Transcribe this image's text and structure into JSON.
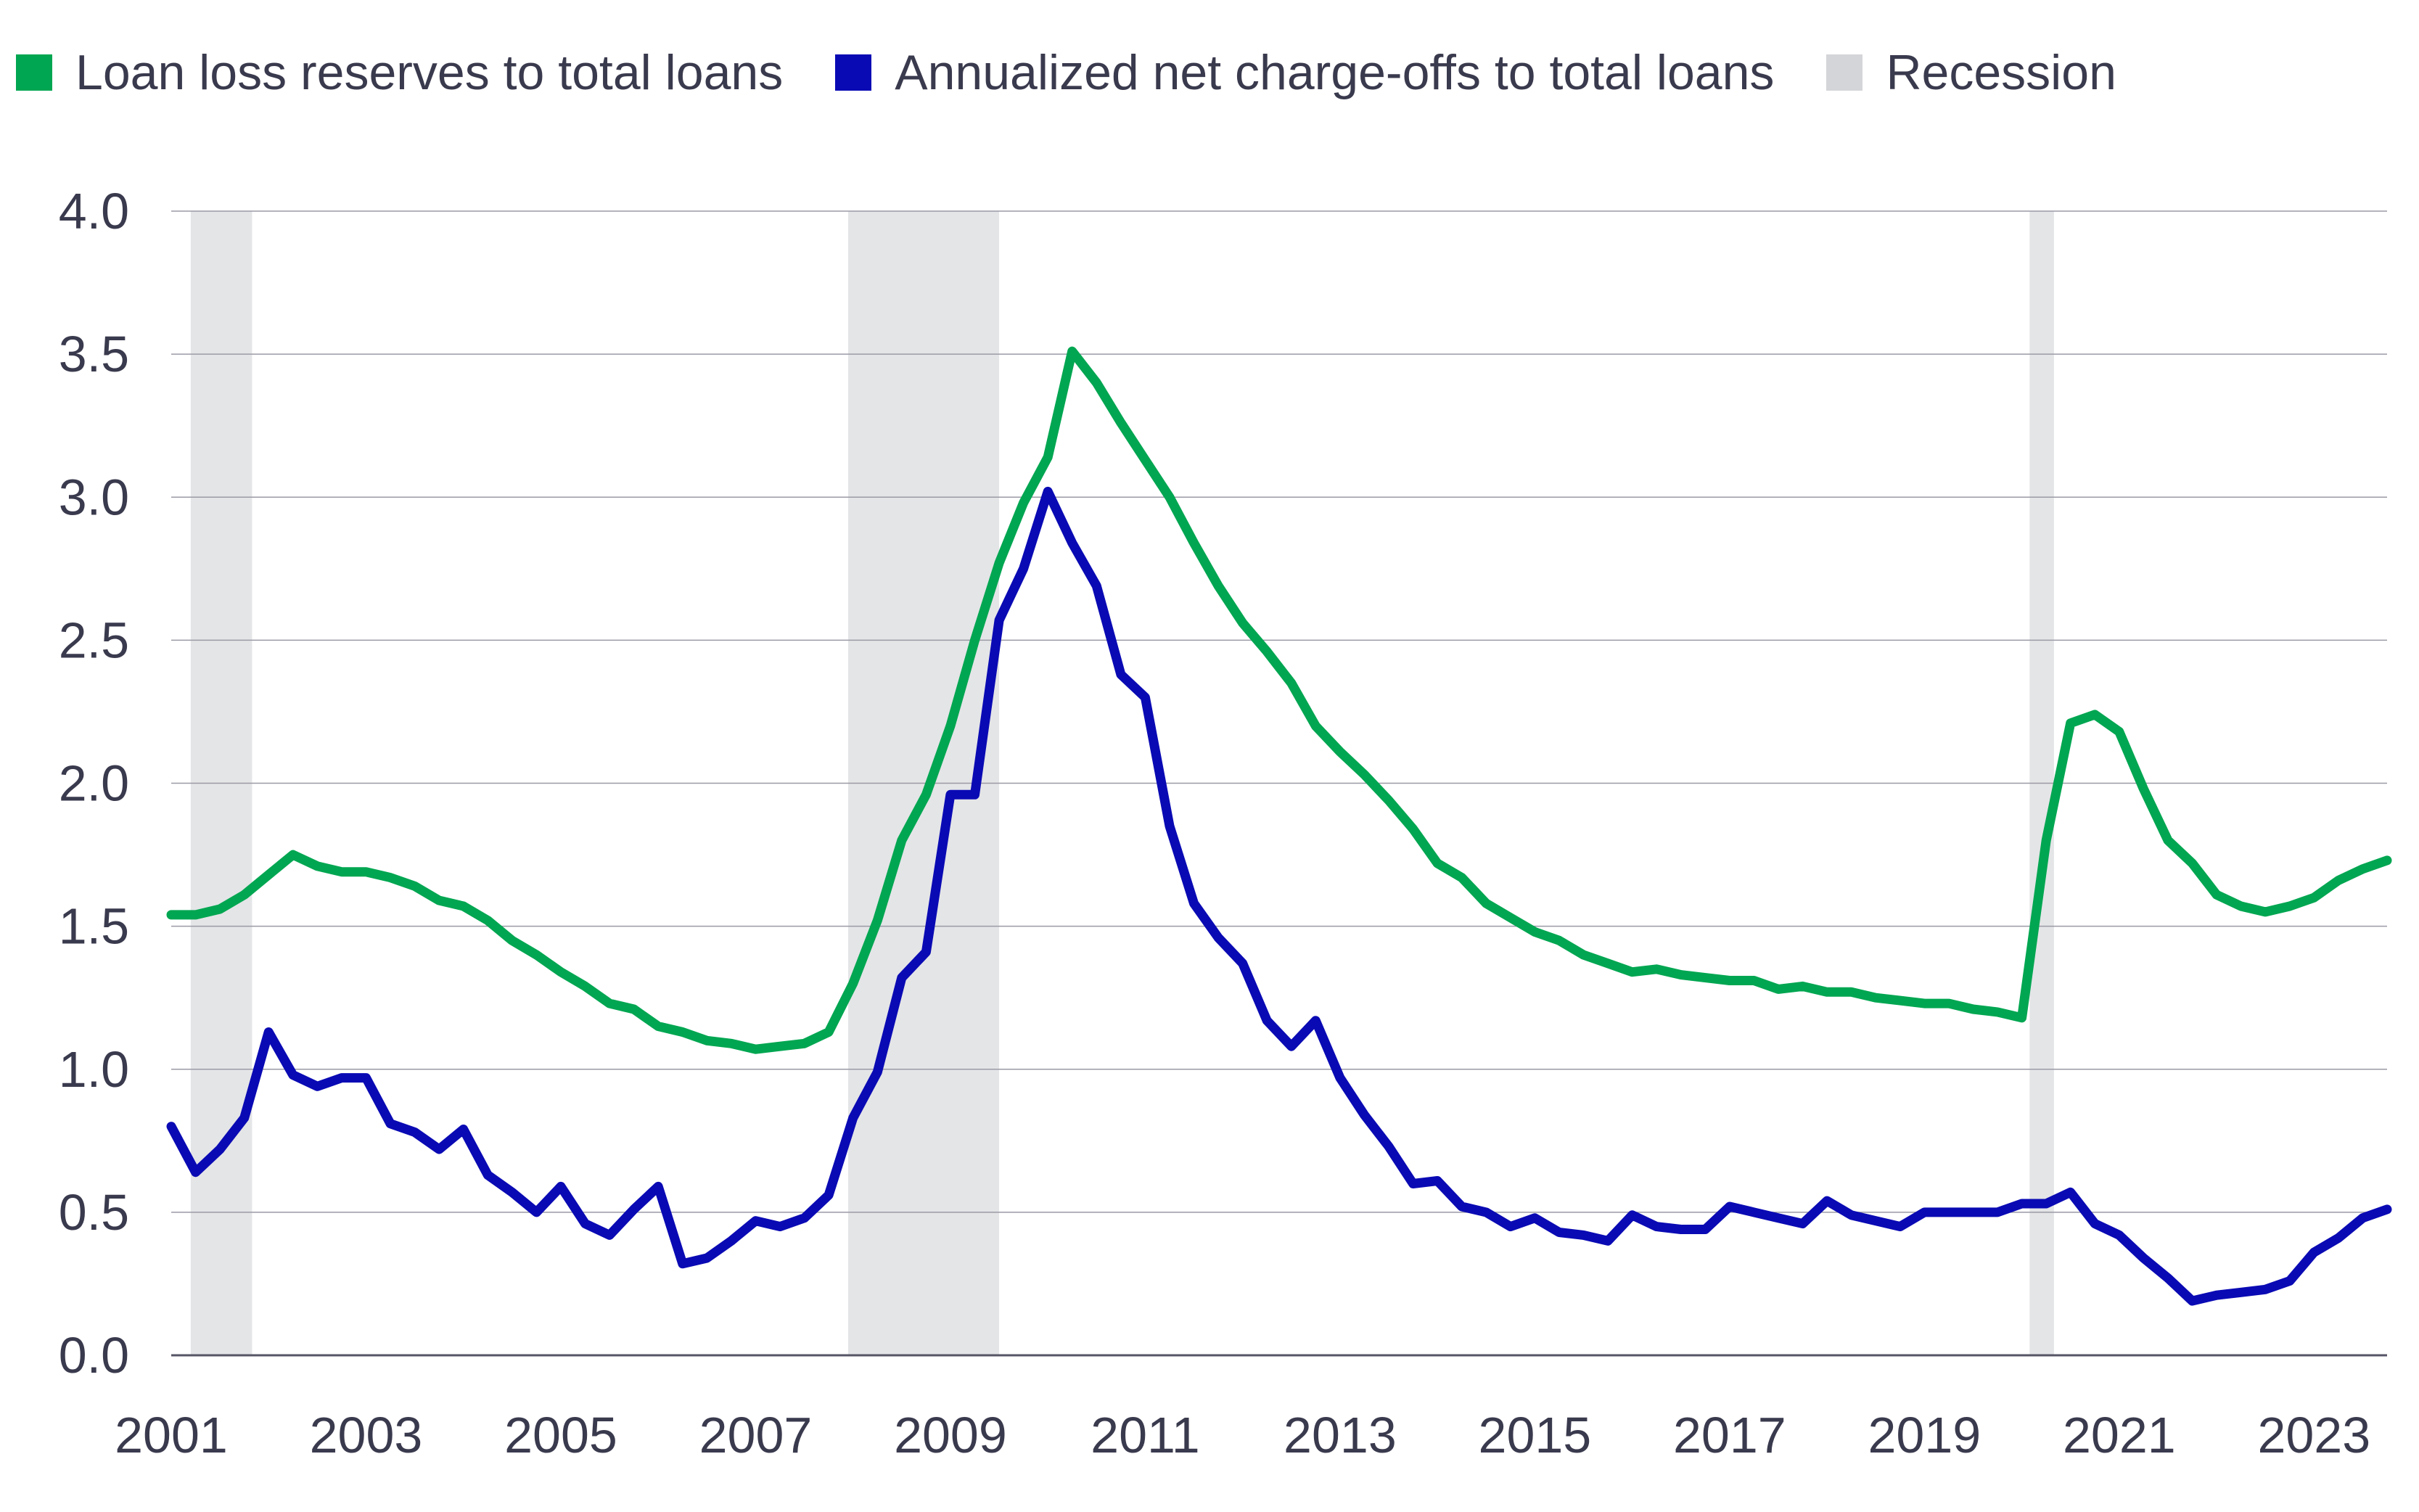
{
  "colors": {
    "reserves": "#00a651",
    "charge_offs": "#0a0ab4",
    "recession": "#e4e5e7",
    "grid": "#9a9aa6",
    "axis_text": "#3a3a4e"
  },
  "legend": [
    {
      "label": "Loan loss reserves to total loans",
      "color": "#00a651"
    },
    {
      "label": "Annualized net charge-offs to total loans",
      "color": "#0a0ab4"
    },
    {
      "label": "Recession",
      "color": "#d4d5d8"
    }
  ],
  "chart_data": {
    "type": "line",
    "title": "",
    "xlabel": "",
    "ylabel": "",
    "xlim": [
      2001.0,
      2023.75
    ],
    "ylim": [
      0,
      4.0
    ],
    "y_ticks": [
      "0.0",
      "0.5",
      "1.0",
      "1.5",
      "2.0",
      "2.5",
      "3.0",
      "3.5",
      "4.0"
    ],
    "x_ticks": [
      "2001",
      "2003",
      "2005",
      "2007",
      "2009",
      "2011",
      "2013",
      "2015",
      "2017",
      "2019",
      "2021",
      "2023"
    ],
    "grid": "horizontal",
    "legend_position": "top",
    "recessions": [
      {
        "start": 2001.2,
        "end": 2001.83
      },
      {
        "start": 2007.95,
        "end": 2009.5
      },
      {
        "start": 2020.08,
        "end": 2020.33
      }
    ],
    "series": [
      {
        "name": "Loan loss reserves to total loans",
        "color": "#00a651",
        "x": [
          2001.0,
          2001.25,
          2001.5,
          2001.75,
          2002.0,
          2002.25,
          2002.5,
          2002.75,
          2003.0,
          2003.25,
          2003.5,
          2003.75,
          2004.0,
          2004.25,
          2004.5,
          2004.75,
          2005.0,
          2005.25,
          2005.5,
          2005.75,
          2006.0,
          2006.25,
          2006.5,
          2006.75,
          2007.0,
          2007.25,
          2007.5,
          2007.75,
          2008.0,
          2008.25,
          2008.5,
          2008.75,
          2009.0,
          2009.25,
          2009.5,
          2009.75,
          2010.0,
          2010.25,
          2010.5,
          2010.75,
          2011.0,
          2011.25,
          2011.5,
          2011.75,
          2012.0,
          2012.25,
          2012.5,
          2012.75,
          2013.0,
          2013.25,
          2013.5,
          2013.75,
          2014.0,
          2014.25,
          2014.5,
          2014.75,
          2015.0,
          2015.25,
          2015.5,
          2015.75,
          2016.0,
          2016.25,
          2016.5,
          2016.75,
          2017.0,
          2017.25,
          2017.5,
          2017.75,
          2018.0,
          2018.25,
          2018.5,
          2018.75,
          2019.0,
          2019.25,
          2019.5,
          2019.75,
          2020.0,
          2020.25,
          2020.5,
          2020.75,
          2021.0,
          2021.25,
          2021.5,
          2021.75,
          2022.0,
          2022.25,
          2022.5,
          2022.75,
          2023.0,
          2023.25,
          2023.5,
          2023.75
        ],
        "values": [
          1.54,
          1.54,
          1.56,
          1.61,
          1.68,
          1.75,
          1.71,
          1.69,
          1.69,
          1.67,
          1.64,
          1.59,
          1.57,
          1.52,
          1.45,
          1.4,
          1.34,
          1.29,
          1.23,
          1.21,
          1.15,
          1.13,
          1.1,
          1.09,
          1.07,
          1.08,
          1.09,
          1.13,
          1.3,
          1.52,
          1.8,
          1.96,
          2.2,
          2.5,
          2.77,
          2.98,
          3.14,
          3.51,
          3.4,
          3.26,
          3.13,
          3.0,
          2.84,
          2.69,
          2.56,
          2.46,
          2.35,
          2.2,
          2.11,
          2.03,
          1.94,
          1.84,
          1.72,
          1.67,
          1.58,
          1.53,
          1.48,
          1.45,
          1.4,
          1.37,
          1.34,
          1.35,
          1.33,
          1.32,
          1.31,
          1.31,
          1.28,
          1.29,
          1.27,
          1.27,
          1.25,
          1.24,
          1.23,
          1.23,
          1.21,
          1.2,
          1.18,
          1.8,
          2.21,
          2.24,
          2.18,
          1.98,
          1.8,
          1.72,
          1.61,
          1.57,
          1.55,
          1.57,
          1.6,
          1.66,
          1.7,
          1.73
        ]
      },
      {
        "name": "Annualized net charge-offs to total loans",
        "color": "#0a0ab4",
        "x": [
          2001.0,
          2001.25,
          2001.5,
          2001.75,
          2002.0,
          2002.25,
          2002.5,
          2002.75,
          2003.0,
          2003.25,
          2003.5,
          2003.75,
          2004.0,
          2004.25,
          2004.5,
          2004.75,
          2005.0,
          2005.25,
          2005.5,
          2005.75,
          2006.0,
          2006.25,
          2006.5,
          2006.75,
          2007.0,
          2007.25,
          2007.5,
          2007.75,
          2008.0,
          2008.25,
          2008.5,
          2008.75,
          2009.0,
          2009.25,
          2009.5,
          2009.75,
          2010.0,
          2010.25,
          2010.5,
          2010.75,
          2011.0,
          2011.25,
          2011.5,
          2011.75,
          2012.0,
          2012.25,
          2012.5,
          2012.75,
          2013.0,
          2013.25,
          2013.5,
          2013.75,
          2014.0,
          2014.25,
          2014.5,
          2014.75,
          2015.0,
          2015.25,
          2015.5,
          2015.75,
          2016.0,
          2016.25,
          2016.5,
          2016.75,
          2017.0,
          2017.25,
          2017.5,
          2017.75,
          2018.0,
          2018.25,
          2018.5,
          2018.75,
          2019.0,
          2019.25,
          2019.5,
          2019.75,
          2020.0,
          2020.25,
          2020.5,
          2020.75,
          2021.0,
          2021.25,
          2021.5,
          2021.75,
          2022.0,
          2022.25,
          2022.5,
          2022.75,
          2023.0,
          2023.25,
          2023.5,
          2023.75
        ],
        "values": [
          0.8,
          0.64,
          0.72,
          0.83,
          1.13,
          0.98,
          0.94,
          0.97,
          0.97,
          0.81,
          0.78,
          0.72,
          0.79,
          0.63,
          0.57,
          0.5,
          0.59,
          0.46,
          0.42,
          0.51,
          0.59,
          0.32,
          0.34,
          0.4,
          0.47,
          0.45,
          0.48,
          0.56,
          0.83,
          0.99,
          1.32,
          1.41,
          1.96,
          1.96,
          2.57,
          2.75,
          3.02,
          2.84,
          2.69,
          2.38,
          2.3,
          1.85,
          1.58,
          1.46,
          1.37,
          1.17,
          1.08,
          1.17,
          0.97,
          0.84,
          0.73,
          0.6,
          0.61,
          0.52,
          0.5,
          0.45,
          0.48,
          0.43,
          0.42,
          0.4,
          0.49,
          0.45,
          0.44,
          0.44,
          0.52,
          0.5,
          0.48,
          0.46,
          0.54,
          0.49,
          0.47,
          0.45,
          0.5,
          0.5,
          0.5,
          0.5,
          0.53,
          0.53,
          0.57,
          0.46,
          0.42,
          0.34,
          0.27,
          0.19,
          0.21,
          0.22,
          0.23,
          0.26,
          0.36,
          0.41,
          0.48,
          0.51
        ]
      }
    ]
  }
}
